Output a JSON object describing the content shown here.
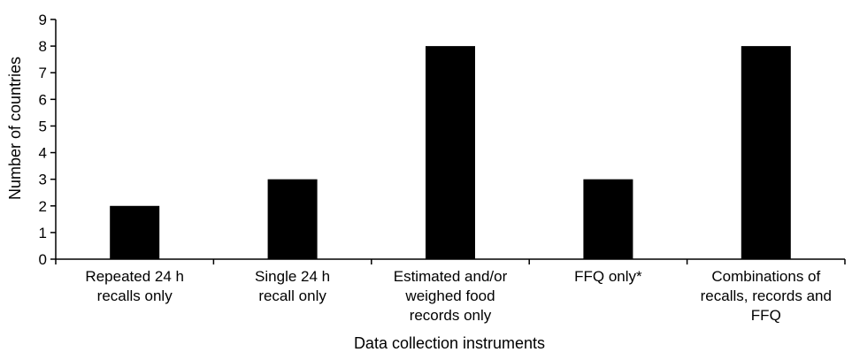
{
  "chart_data": {
    "type": "bar",
    "title": "",
    "xlabel": "Data collection instruments",
    "ylabel": "Number of countries",
    "ylim": [
      0,
      9
    ],
    "yticks": [
      0,
      1,
      2,
      3,
      4,
      5,
      6,
      7,
      8,
      9
    ],
    "grid": false,
    "legend": "none",
    "bar_color": "#000000",
    "categories": [
      [
        "Repeated 24 h",
        "recalls only"
      ],
      [
        "Single 24 h",
        "recall only"
      ],
      [
        "Estimated and/or",
        "weighed food",
        "records only"
      ],
      [
        "FFQ only*"
      ],
      [
        "Combinations of",
        "recalls, records and",
        "FFQ"
      ]
    ],
    "values": [
      2,
      3,
      8,
      3,
      8
    ]
  }
}
